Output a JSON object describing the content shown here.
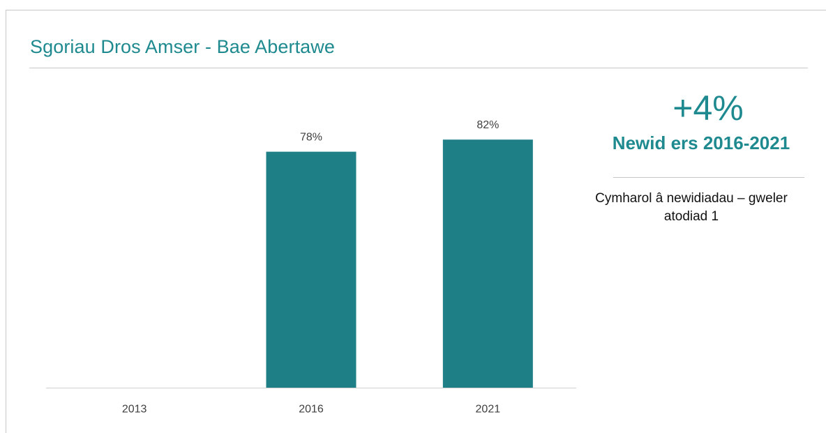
{
  "page": {
    "title": "Sgoriau Dros Amser - Bae Abertawe"
  },
  "side_panel": {
    "change_value": "+4%",
    "change_label": "Newid ers 2016-2021",
    "note": "Cymharol â newidiadau – gweler atodiad 1"
  },
  "colors": {
    "accent": "#1e8a8f",
    "bar": "#1f7f87",
    "axis": "#d0d0d0",
    "text": "#404040"
  },
  "chart_data": {
    "type": "bar",
    "categories": [
      "2013",
      "2016",
      "2021"
    ],
    "values": [
      null,
      78,
      82
    ],
    "data_labels": [
      "",
      "78%",
      "82%"
    ],
    "unit": "%",
    "ylim": [
      0,
      100
    ],
    "title": "",
    "xlabel": "",
    "ylabel": "",
    "grid": false,
    "legend": "none"
  }
}
